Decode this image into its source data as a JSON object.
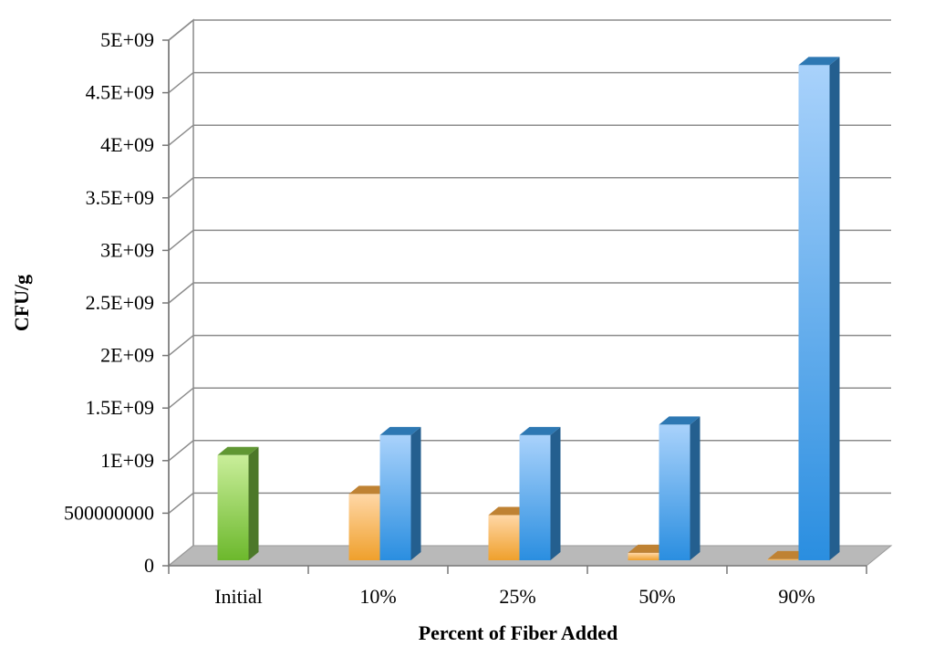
{
  "chart_data": {
    "type": "bar",
    "title": "",
    "xlabel": "Percent of Fiber Added",
    "ylabel": "CFU/g",
    "ylim": [
      0,
      5000000000
    ],
    "ytick_values": [
      0,
      500000000,
      1000000000,
      1500000000,
      2000000000,
      2500000000,
      3000000000,
      3500000000,
      4000000000,
      4500000000,
      5000000000
    ],
    "ytick_labels": [
      "0",
      "500000000",
      "1E+09",
      "1.5E+09",
      "2E+09",
      "2.5E+09",
      "3E+09",
      "3.5E+09",
      "4E+09",
      "4.5E+09",
      "5E+09"
    ],
    "categories": [
      "Initial",
      "10%",
      "25%",
      "50%",
      "90%"
    ],
    "grid": true,
    "legend": "none",
    "bars": [
      {
        "category": "Initial",
        "value": 1000000000,
        "color": "#7bc142"
      },
      {
        "category": "10%",
        "value": 630000000,
        "color": "#f5a742"
      },
      {
        "category": "10%",
        "value": 1190000000,
        "color": "#3a9ae6"
      },
      {
        "category": "25%",
        "value": 430000000,
        "color": "#f5a742"
      },
      {
        "category": "25%",
        "value": 1190000000,
        "color": "#3a9ae6"
      },
      {
        "category": "50%",
        "value": 70000000,
        "color": "#f5a742"
      },
      {
        "category": "50%",
        "value": 1290000000,
        "color": "#3a9ae6"
      },
      {
        "category": "90%",
        "value": 10000000,
        "color": "#f5a742"
      },
      {
        "category": "90%",
        "value": 4710000000,
        "color": "#3a9ae6"
      }
    ]
  }
}
